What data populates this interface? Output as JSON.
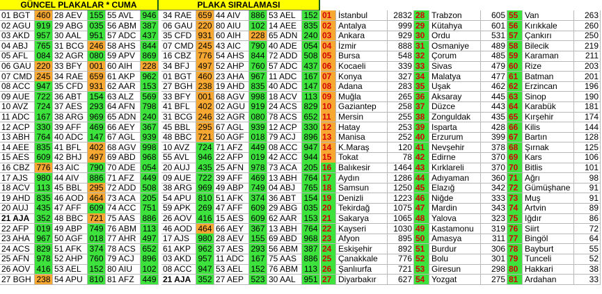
{
  "left": {
    "headers": [
      "GÜNCEL PLAKALAR * CUMA",
      "PLAKA SIRALAMASI"
    ],
    "value_color": "#3de23d",
    "highlight_color": "#f7a832",
    "highlighted": [
      [
        0,
        0
      ],
      [
        5,
        0
      ],
      [
        6,
        0
      ],
      [
        15,
        0
      ],
      [
        26,
        0
      ],
      [
        3,
        1
      ],
      [
        5,
        1
      ],
      [
        6,
        1
      ],
      [
        7,
        1
      ],
      [
        13,
        1
      ],
      [
        14,
        1
      ],
      [
        17,
        1
      ],
      [
        18,
        1
      ],
      [
        20,
        1
      ],
      [
        5,
        2
      ],
      [
        0,
        3
      ],
      [
        1,
        3
      ],
      [
        2,
        3
      ],
      [
        3,
        3
      ],
      [
        4,
        3
      ],
      [
        5,
        3
      ],
      [
        6,
        3
      ],
      [
        7,
        3
      ],
      [
        8,
        3
      ],
      [
        9,
        3
      ],
      [
        10,
        3
      ],
      [
        11,
        3
      ],
      [
        12,
        3
      ],
      [
        21,
        3
      ],
      [
        2,
        4
      ]
    ],
    "bold": [
      [
        20,
        0
      ],
      [
        26,
        3
      ]
    ],
    "rows": [
      [
        "01 BGT",
        "460",
        "28 AEV",
        "155",
        "55 AVL",
        "946",
        "34 RAE",
        "659",
        "44 AIV",
        "886",
        "53 AEL",
        "152"
      ],
      [
        "02 AGU",
        "919",
        "29 ABG",
        "035",
        "56 ABM",
        "387",
        "06 GAU",
        "220",
        "80 AIU",
        "102",
        "14 AEE",
        "835"
      ],
      [
        "03 AKD",
        "957",
        "30 AAL",
        "951",
        "57 ADC",
        "437",
        "35 CFD",
        "931",
        "60 AIH",
        "228",
        "65 ADN",
        "240"
      ],
      [
        "04 ABJ",
        "765",
        "31 BCG",
        "246",
        "58 AHS",
        "844",
        "07 CMD",
        "245",
        "43 AIC",
        "790",
        "40 ADE",
        "054"
      ],
      [
        "05 AFL",
        "084",
        "32 AGR",
        "080",
        "59 APV",
        "869",
        "16 CBZ",
        "776",
        "54 AHS",
        "844",
        "72 ADD",
        "508"
      ],
      [
        "06 GAU",
        "220",
        "33 BFY",
        "001",
        "60 AIH",
        "228",
        "34 BFJ",
        "497",
        "52 AHP",
        "760",
        "57 ADC",
        "437"
      ],
      [
        "07 CMD",
        "245",
        "34 RAE",
        "659",
        "61 AKP",
        "962",
        "01 BGT",
        "460",
        "23 AHA",
        "967",
        "11 ADC",
        "167"
      ],
      [
        "08 ACC",
        "947",
        "35 CFD",
        "931",
        "62 AAR",
        "153",
        "27 BGH",
        "238",
        "19 AHD",
        "835",
        "40 ADC",
        "147"
      ],
      [
        "09 AUE",
        "722",
        "36 ABT",
        "154",
        "63 ALZ",
        "569",
        "33 BFY",
        "001",
        "68 AGV",
        "998",
        "18 ACV",
        "113"
      ],
      [
        "10 AVZ",
        "724",
        "37 AES",
        "293",
        "64 AFN",
        "798",
        "41 BFL",
        "402",
        "02 AGU",
        "919",
        "24 ACS",
        "829"
      ],
      [
        "11 ADC",
        "167",
        "38 ARG",
        "969",
        "65 ADN",
        "240",
        "31 BCG",
        "246",
        "32 AGR",
        "080",
        "78 ACS",
        "652"
      ],
      [
        "12 ACP",
        "330",
        "39 AFF",
        "469",
        "66 AEY",
        "367",
        "45 BBL",
        "295",
        "67 AGL",
        "939",
        "12 ACP",
        "330"
      ],
      [
        "13 ABH",
        "764",
        "40 ADC",
        "147",
        "67 AGL",
        "939",
        "48 BBC",
        "721",
        "50 AGF",
        "018",
        "79 ACJ",
        "896"
      ],
      [
        "14 AEE",
        "835",
        "41 BFL",
        "402",
        "68 AGV",
        "998",
        "10 AVZ",
        "724",
        "71 AFZ",
        "449",
        "08 ACC",
        "947"
      ],
      [
        "15 AES",
        "609",
        "42 BHJ",
        "497",
        "69 ABD",
        "968",
        "55 AVL",
        "946",
        "22 AFP",
        "019",
        "42 ACC",
        "944"
      ],
      [
        "16 CBZ",
        "776",
        "43 AIC",
        "790",
        "70 ADE",
        "054",
        "20 AUJ",
        "435",
        "25 AFN",
        "978",
        "73 ACA",
        "205"
      ],
      [
        "17 AJS",
        "980",
        "44 AIV",
        "886",
        "71 AFZ",
        "449",
        "09 AUE",
        "722",
        "39 AFF",
        "469",
        "13 ABH",
        "764"
      ],
      [
        "18 ACV",
        "113",
        "45 BBL",
        "295",
        "72 ADD",
        "508",
        "38 ARG",
        "969",
        "49 ABP",
        "749",
        "04 ABJ",
        "765"
      ],
      [
        "19 AHD",
        "835",
        "46 AOD",
        "464",
        "73 ACA",
        "205",
        "54 APU",
        "810",
        "51 AFK",
        "374",
        "36 ABT",
        "154"
      ],
      [
        "20 AUJ",
        "435",
        "47 AFF",
        "609",
        "74 ACC",
        "751",
        "59 APK",
        "269",
        "47 AFF",
        "609",
        "29 ABG",
        "035"
      ],
      [
        "21 AJA",
        "352",
        "48 BBC",
        "721",
        "75 AAS",
        "886",
        "26 AOV",
        "416",
        "15 AES",
        "609",
        "62 AAR",
        "153"
      ],
      [
        "22 AFP",
        "019",
        "49 ABP",
        "749",
        "76 ABM",
        "113",
        "46 AOD",
        "464",
        "66 AEY",
        "367",
        "13 ABH",
        "764"
      ],
      [
        "23 AHA",
        "967",
        "50 AGF",
        "018",
        "77 AHR",
        "497",
        "17 AJS",
        "980",
        "28 AEV",
        "155",
        "69 ABD",
        "968"
      ],
      [
        "24 ACS",
        "829",
        "51 AFK",
        "374",
        "78 ACS",
        "652",
        "61 AKP",
        "962",
        "37 AES",
        "293",
        "56 ABM",
        "387"
      ],
      [
        "25 AFN",
        "978",
        "52 AHP",
        "760",
        "79 ACJ",
        "896",
        "03 AKD",
        "957",
        "11 ADC",
        "167",
        "75 AAS",
        "886"
      ],
      [
        "26 AOV",
        "416",
        "53 AEL",
        "152",
        "80 AIU",
        "102",
        "08 ACC",
        "947",
        "53 AEL",
        "152",
        "76 ABM",
        "113"
      ],
      [
        "27 BGH",
        "238",
        "54 APU",
        "810",
        "81 AFZ",
        "449",
        "21 AJA",
        "352",
        "27 AEP",
        "523",
        "30 AAL",
        "951"
      ]
    ]
  },
  "ranking": {
    "rows": [
      [
        "01",
        "İstanbul",
        2832,
        "28",
        "Trabzon",
        605,
        "55",
        "Van",
        263
      ],
      [
        "02",
        "Antalya",
        999,
        "29",
        "Kütahya",
        601,
        "56",
        "Kırıkkale",
        260
      ],
      [
        "03",
        "Ankara",
        929,
        "30",
        "Ordu",
        531,
        "57",
        "Çankırı",
        250
      ],
      [
        "04",
        "İzmir",
        888,
        "31",
        "Osmaniye",
        489,
        "58",
        "Bilecik",
        219
      ],
      [
        "05",
        "Bursa",
        548,
        "32",
        "Çorum",
        485,
        "59",
        "Karaman",
        211
      ],
      [
        "06",
        "Kocaeli",
        339,
        "33",
        "Sivas",
        479,
        "60",
        "Rize",
        203
      ],
      [
        "07",
        "Konya",
        327,
        "34",
        "Malatya",
        477,
        "61",
        "Batman",
        201
      ],
      [
        "08",
        "Adana",
        283,
        "35",
        "Uşak",
        462,
        "62",
        "Erzincan",
        196
      ],
      [
        "09",
        "Muğla",
        265,
        "36",
        "Aksaray",
        445,
        "63",
        "Sinop",
        190
      ],
      [
        "10",
        "Gaziantep",
        258,
        "37",
        "Düzce",
        443,
        "64",
        "Karabük",
        181
      ],
      [
        "11",
        "Mersin",
        255,
        "38",
        "Zonguldak",
        435,
        "65",
        "Kırşehir",
        174
      ],
      [
        "12",
        "Hatay",
        253,
        "39",
        "Isparta",
        428,
        "66",
        "Kilis",
        144
      ],
      [
        "13",
        "Manisa",
        252,
        "40",
        "Erzurum",
        399,
        "67",
        "Bartın",
        128
      ],
      [
        "14",
        "K.Maraş",
        120,
        "41",
        "Nevşehir",
        378,
        "68",
        "Şırnak",
        125
      ],
      [
        "15",
        "Tokat",
        78,
        "42",
        "Edirne",
        370,
        "69",
        "Kars",
        106
      ],
      [
        "16",
        "Balıkesir",
        1464,
        "43",
        "Kırklareli",
        370,
        "70",
        "Bitlis",
        101
      ],
      [
        "17",
        "Aydın",
        1286,
        "44",
        "Adıyaman",
        360,
        "71",
        "Ağrı",
        98
      ],
      [
        "18",
        "Samsun",
        1250,
        "45",
        "Elazığ",
        342,
        "72",
        "Gümüşhane",
        91
      ],
      [
        "19",
        "Denizli",
        1223,
        "46",
        "Niğde",
        333,
        "73",
        "Muş",
        91
      ],
      [
        "20",
        "Tekirdağ",
        1075,
        "47",
        "Mardin",
        343,
        "74",
        "Artvin",
        89
      ],
      [
        "21",
        "Sakarya",
        1065,
        "48",
        "Yalova",
        323,
        "75",
        "Iğdır",
        86
      ],
      [
        "22",
        "Kayseri",
        1030,
        "49",
        "Kastamonu",
        319,
        "76",
        "Siirt",
        72
      ],
      [
        "23",
        "Afyon",
        895,
        "50",
        "Amasya",
        311,
        "77",
        "Bingöl",
        64
      ],
      [
        "24",
        "Eskişehir",
        892,
        "51",
        "Burdur",
        306,
        "78",
        "Bayburt",
        55
      ],
      [
        "25",
        "Çanakkale",
        776,
        "52",
        "Bolu",
        301,
        "79",
        "Tunceli",
        52
      ],
      [
        "26",
        "Şanlıurfa",
        721,
        "53",
        "Giresun",
        298,
        "80",
        "Hakkari",
        38
      ],
      [
        "27",
        "Diyarbakır",
        627,
        "54",
        "Yozgat",
        275,
        "81",
        "Ardahan",
        33
      ]
    ]
  }
}
